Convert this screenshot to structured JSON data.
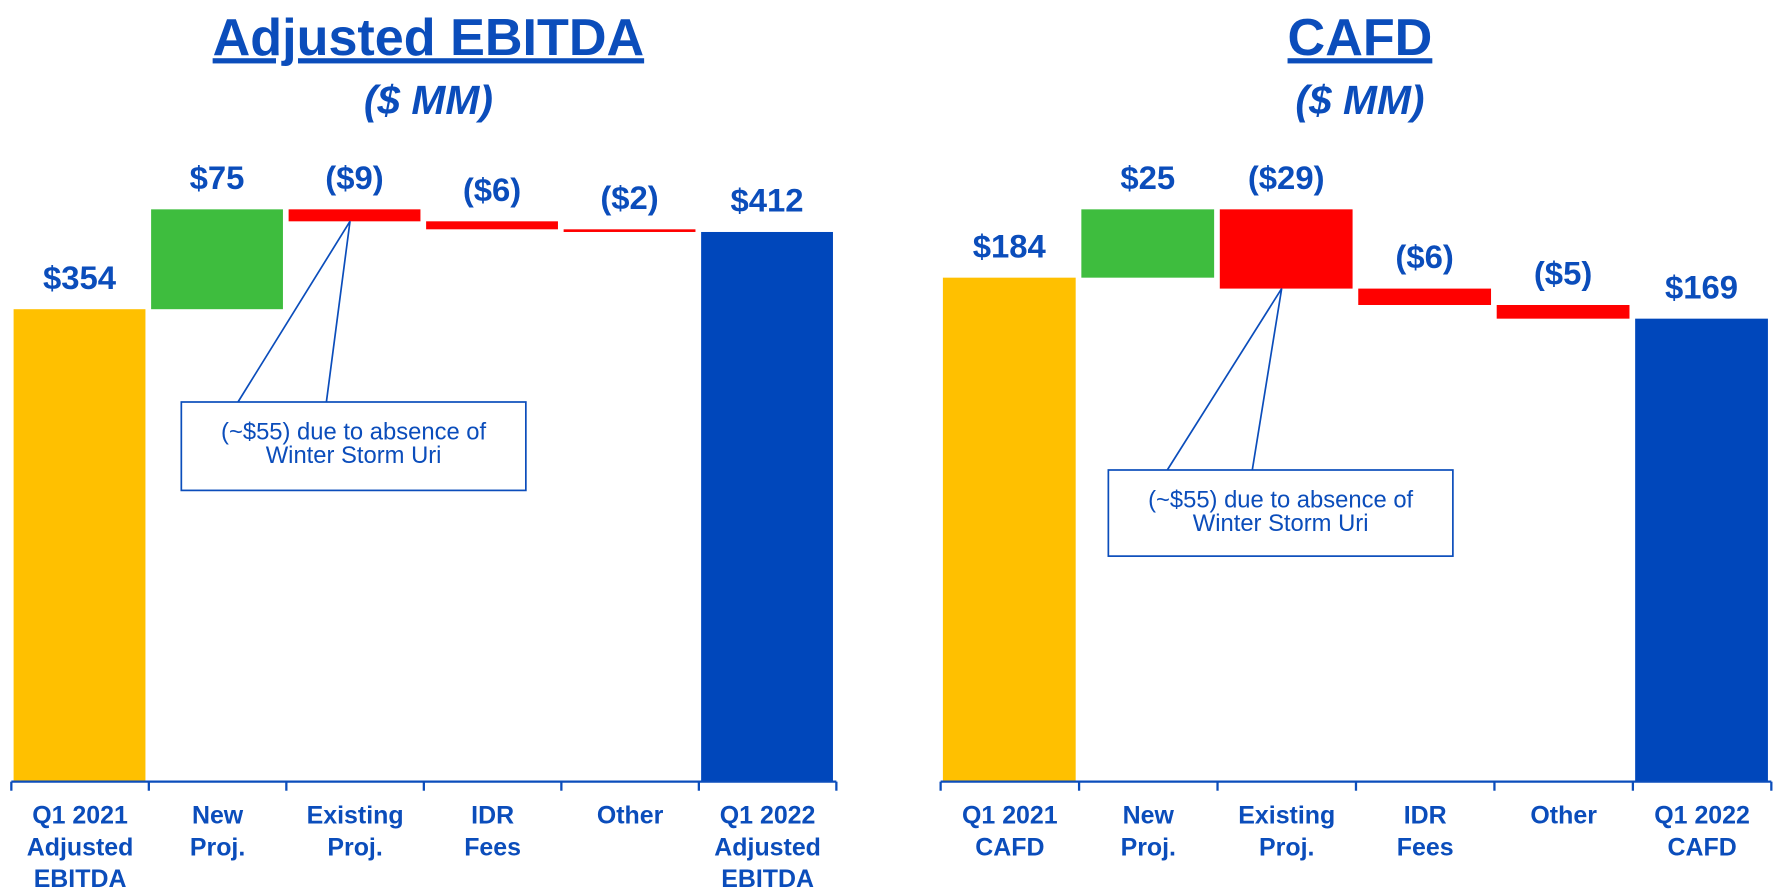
{
  "chart_data": [
    {
      "type": "waterfall",
      "title": "Adjusted EBITDA",
      "subtitle": "($ MM)",
      "categories": [
        "Q1 2021\nAdjusted\nEBITDA",
        "New\nProj.",
        "Existing\nProj.",
        "IDR\nFees",
        "Other",
        "Q1 2022\nAdjusted\nEBITDA"
      ],
      "values": [
        354,
        75,
        -9,
        -6,
        -2,
        412
      ],
      "value_labels": [
        "$354",
        "$75",
        "($9)",
        "($6)",
        "($2)",
        "$412"
      ],
      "colors": [
        "#FFC000",
        "#3EBD3E",
        "#FF0000",
        "#FF0000",
        "#FF0000",
        "#0047BB"
      ],
      "annotation": "(~$55) due to absence of\nWinter Storm Uri"
    },
    {
      "type": "waterfall",
      "title": "CAFD",
      "subtitle": "($ MM)",
      "categories": [
        "Q1 2021\nCAFD",
        "New\nProj.",
        "Existing\nProj.",
        "IDR\nFees",
        "Other",
        "Q1 2022\nCAFD"
      ],
      "values": [
        184,
        25,
        -29,
        -6,
        -5,
        169
      ],
      "value_labels": [
        "$184",
        "$25",
        "($29)",
        "($6)",
        "($5)",
        "$169"
      ],
      "colors": [
        "#FFC000",
        "#3EBD3E",
        "#FF0000",
        "#FF0000",
        "#FF0000",
        "#0047BB"
      ],
      "annotation": "(~$55) due to absence of\nWinter Storm Uri"
    }
  ]
}
